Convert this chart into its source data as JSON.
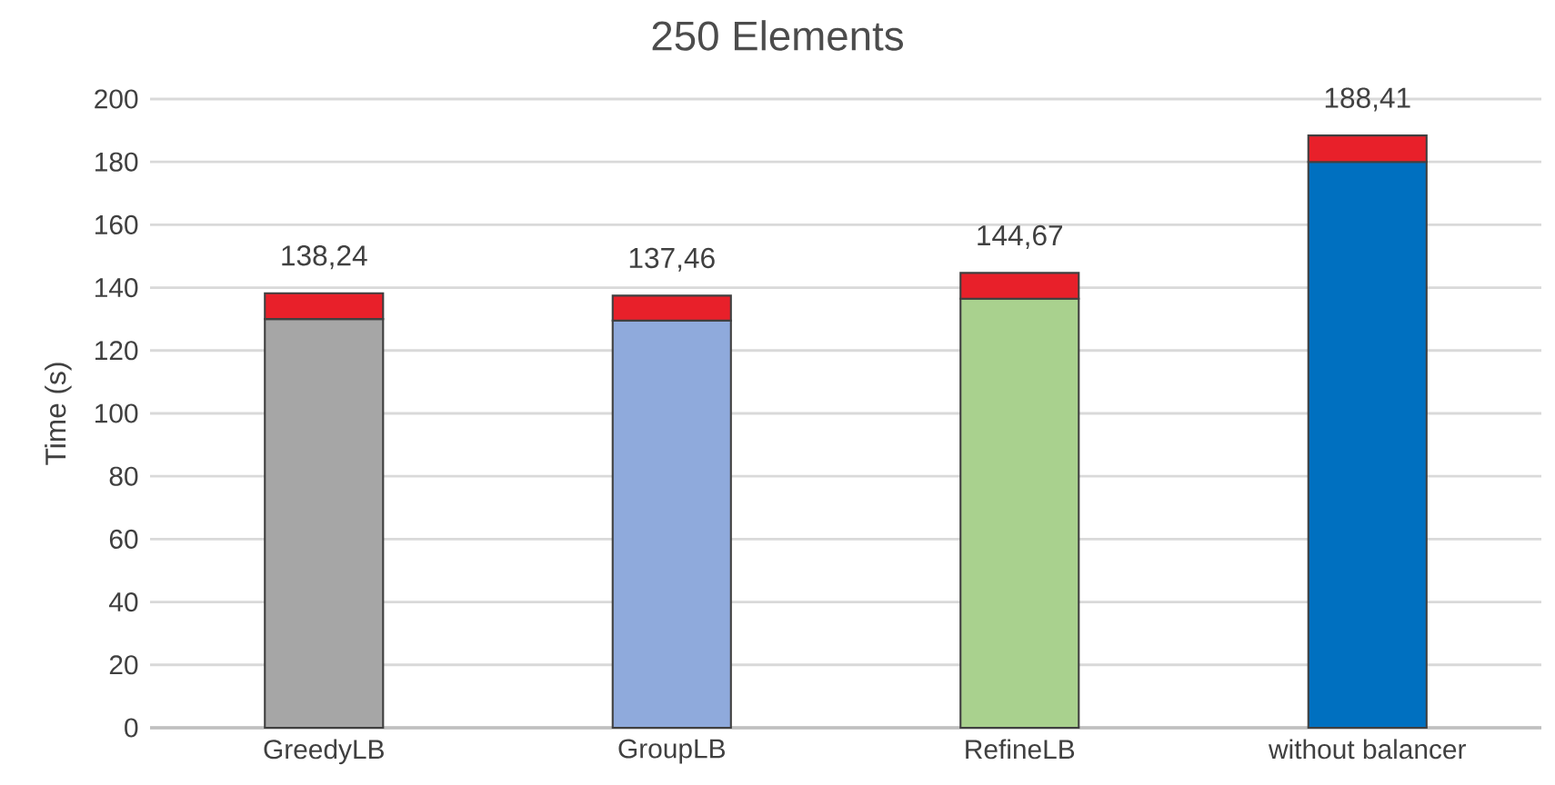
{
  "chart_data": {
    "type": "bar",
    "title": "250 Elements",
    "ylabel": "Time (s)",
    "stacked": true,
    "categories": [
      "GreedyLB",
      "GroupLB",
      "RefineLB",
      "without balancer"
    ],
    "series": [
      {
        "colors": [
          "#a6a6a6",
          "#8faadc",
          "#a9d18e",
          "#0070c0"
        ],
        "values": [
          130,
          129.5,
          136.5,
          180
        ]
      },
      {
        "color": "#e8202a",
        "values": [
          8.24,
          7.96,
          8.17,
          8.41
        ]
      }
    ],
    "totals": [
      "138,24",
      "137,46",
      "144,67",
      "188,41"
    ],
    "ylim": [
      0,
      200
    ],
    "yticks": [
      0,
      20,
      40,
      60,
      80,
      100,
      120,
      140,
      160,
      180,
      200
    ],
    "grid": "y"
  }
}
